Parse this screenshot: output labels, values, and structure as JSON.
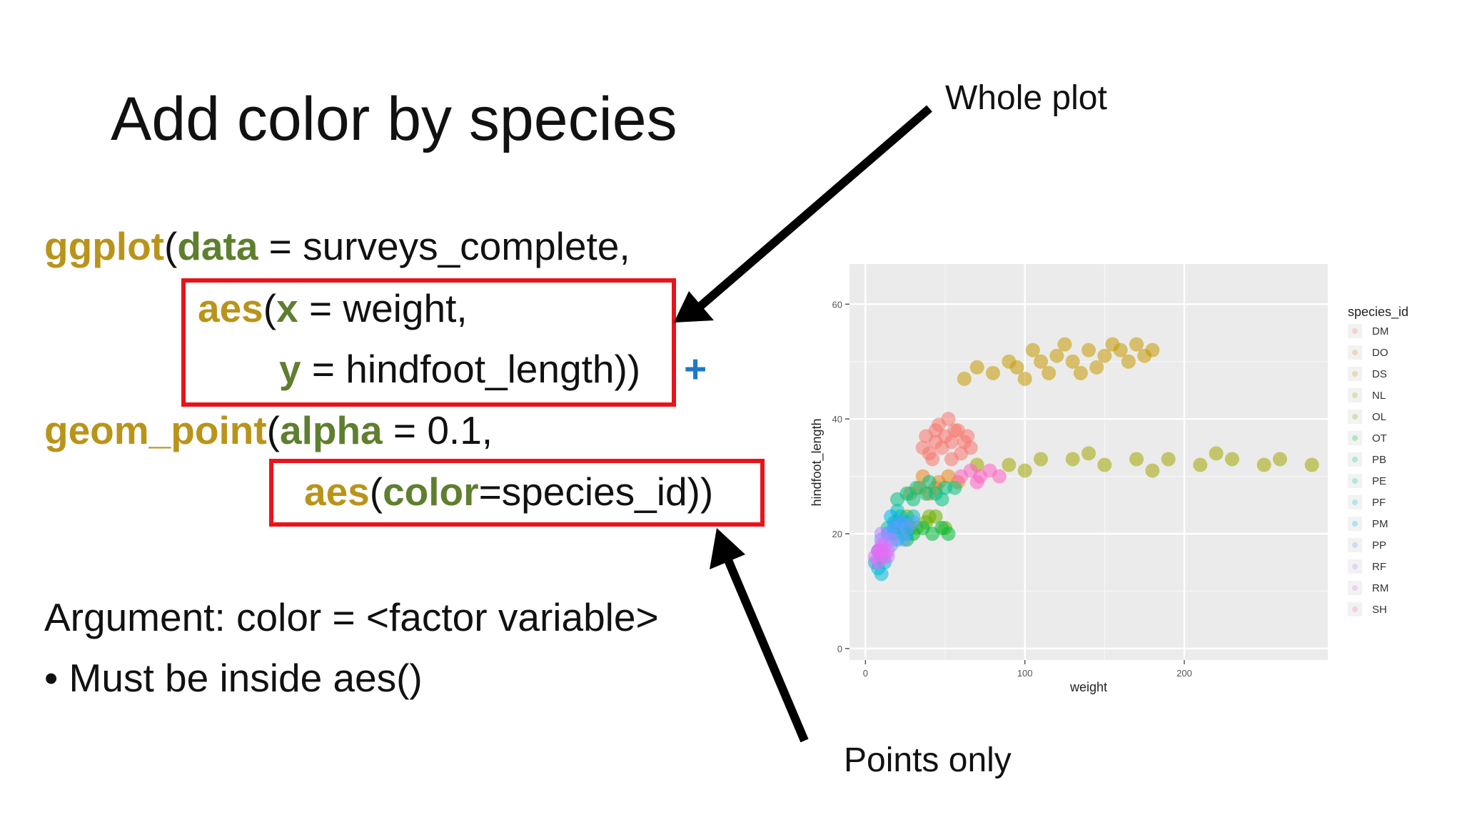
{
  "slide": {
    "title": "Add color by species",
    "code": {
      "l1_fn": "ggplot",
      "l1_open": "(",
      "l1_arg": "data",
      "l1_rest": " = surveys_complete,",
      "l2_fn": "aes",
      "l2_open": "(",
      "l2_arg": "x",
      "l2_rest": " = weight,",
      "l3_arg": "y",
      "l3_rest": " = hindfoot_length))",
      "l3_plus": "+",
      "l4_fn": "geom_point",
      "l4_open": "(",
      "l4_arg": "alpha",
      "l4_rest": " = 0.1,",
      "l5_fn": "aes",
      "l5_open": "(",
      "l5_arg": "color",
      "l5_rest": "=species_id))"
    },
    "argument_text": "Argument: color = <factor variable>",
    "bullet_text": "• Must be inside aes()",
    "annotation_whole_plot": "Whole plot",
    "annotation_points_only": "Points only"
  },
  "colors": {
    "function": "#b9941a",
    "argument": "#5e7f2e",
    "plus": "#1f78c8",
    "highlight_box": "#e8141b",
    "panel_bg": "#ebebeb",
    "grid": "#ffffff"
  },
  "chart_data": {
    "type": "scatter",
    "title": "",
    "xlabel": "weight",
    "ylabel": "hindfoot_length",
    "xlim": [
      -10,
      290
    ],
    "ylim": [
      -2,
      67
    ],
    "x_ticks": [
      0,
      100,
      200
    ],
    "y_ticks": [
      0,
      20,
      40,
      60
    ],
    "grid": true,
    "alpha": 0.1,
    "legend_title": "species_id",
    "legend_position": "right",
    "series": [
      {
        "name": "DM",
        "color": "#f8766d",
        "points": [
          [
            38,
            37
          ],
          [
            44,
            36
          ],
          [
            50,
            37
          ],
          [
            56,
            38
          ],
          [
            62,
            36
          ],
          [
            40,
            34
          ],
          [
            48,
            35
          ],
          [
            54,
            36
          ],
          [
            60,
            34
          ],
          [
            46,
            39
          ],
          [
            52,
            40
          ],
          [
            58,
            38
          ],
          [
            64,
            37
          ],
          [
            36,
            35
          ],
          [
            42,
            33
          ],
          [
            66,
            35
          ],
          [
            54,
            33
          ],
          [
            44,
            38
          ]
        ]
      },
      {
        "name": "DO",
        "color": "#e7861b",
        "points": [
          [
            28,
            27
          ],
          [
            34,
            28
          ],
          [
            40,
            27
          ],
          [
            46,
            29
          ],
          [
            52,
            30
          ],
          [
            58,
            29
          ],
          [
            36,
            30
          ],
          [
            44,
            28
          ]
        ]
      },
      {
        "name": "DS",
        "color": "#c59900",
        "points": [
          [
            62,
            47
          ],
          [
            80,
            48
          ],
          [
            95,
            49
          ],
          [
            110,
            50
          ],
          [
            120,
            51
          ],
          [
            130,
            50
          ],
          [
            140,
            52
          ],
          [
            150,
            51
          ],
          [
            160,
            52
          ],
          [
            170,
            53
          ],
          [
            100,
            47
          ],
          [
            115,
            48
          ],
          [
            125,
            53
          ],
          [
            135,
            48
          ],
          [
            145,
            49
          ],
          [
            155,
            53
          ],
          [
            165,
            50
          ],
          [
            90,
            50
          ],
          [
            105,
            52
          ],
          [
            175,
            51
          ],
          [
            180,
            52
          ],
          [
            70,
            49
          ]
        ]
      },
      {
        "name": "NL",
        "color": "#a3a500",
        "points": [
          [
            70,
            32
          ],
          [
            90,
            32
          ],
          [
            110,
            33
          ],
          [
            130,
            33
          ],
          [
            150,
            32
          ],
          [
            170,
            33
          ],
          [
            190,
            33
          ],
          [
            210,
            32
          ],
          [
            230,
            33
          ],
          [
            250,
            32
          ],
          [
            100,
            31
          ],
          [
            140,
            34
          ],
          [
            180,
            31
          ],
          [
            220,
            34
          ],
          [
            260,
            33
          ],
          [
            280,
            32
          ]
        ]
      },
      {
        "name": "OL",
        "color": "#6bb100",
        "points": [
          [
            20,
            22
          ],
          [
            26,
            23
          ],
          [
            32,
            21
          ],
          [
            38,
            22
          ],
          [
            44,
            23
          ],
          [
            50,
            21
          ],
          [
            28,
            21
          ],
          [
            40,
            23
          ]
        ]
      },
      {
        "name": "OT",
        "color": "#00ba38",
        "points": [
          [
            18,
            20
          ],
          [
            24,
            21
          ],
          [
            30,
            20
          ],
          [
            36,
            21
          ],
          [
            42,
            20
          ],
          [
            48,
            21
          ],
          [
            52,
            20
          ],
          [
            26,
            19
          ]
        ]
      },
      {
        "name": "PB",
        "color": "#00bf7d",
        "points": [
          [
            20,
            26
          ],
          [
            26,
            27
          ],
          [
            32,
            28
          ],
          [
            38,
            27
          ],
          [
            44,
            27
          ],
          [
            50,
            28
          ],
          [
            56,
            28
          ],
          [
            30,
            26
          ],
          [
            40,
            29
          ],
          [
            48,
            26
          ]
        ]
      },
      {
        "name": "PE",
        "color": "#00c0af",
        "points": [
          [
            14,
            21
          ],
          [
            18,
            22
          ],
          [
            22,
            23
          ],
          [
            26,
            22
          ],
          [
            30,
            23
          ],
          [
            20,
            24
          ]
        ]
      },
      {
        "name": "PF",
        "color": "#00bcd8",
        "points": [
          [
            6,
            15
          ],
          [
            8,
            14
          ],
          [
            10,
            16
          ],
          [
            12,
            15
          ],
          [
            8,
            17
          ],
          [
            10,
            13
          ]
        ]
      },
      {
        "name": "PM",
        "color": "#00b0f6",
        "points": [
          [
            14,
            20
          ],
          [
            18,
            21
          ],
          [
            22,
            22
          ],
          [
            26,
            20
          ],
          [
            16,
            23
          ],
          [
            20,
            19
          ]
        ]
      },
      {
        "name": "PP",
        "color": "#619cff",
        "points": [
          [
            10,
            19
          ],
          [
            14,
            20
          ],
          [
            18,
            21
          ],
          [
            22,
            22
          ],
          [
            26,
            21
          ],
          [
            30,
            22
          ],
          [
            16,
            18
          ],
          [
            24,
            19
          ]
        ]
      },
      {
        "name": "RF",
        "color": "#b983ff",
        "points": [
          [
            8,
            17
          ],
          [
            12,
            18
          ],
          [
            16,
            19
          ],
          [
            10,
            20
          ],
          [
            14,
            16
          ]
        ]
      },
      {
        "name": "RM",
        "color": "#e76bf3",
        "points": [
          [
            6,
            16
          ],
          [
            8,
            17
          ],
          [
            10,
            17
          ],
          [
            12,
            16
          ],
          [
            8,
            15
          ],
          [
            14,
            17
          ],
          [
            10,
            18
          ]
        ]
      },
      {
        "name": "SH",
        "color": "#ff61c3",
        "points": [
          [
            60,
            30
          ],
          [
            66,
            31
          ],
          [
            72,
            30
          ],
          [
            78,
            31
          ],
          [
            84,
            30
          ],
          [
            70,
            29
          ]
        ]
      }
    ]
  }
}
